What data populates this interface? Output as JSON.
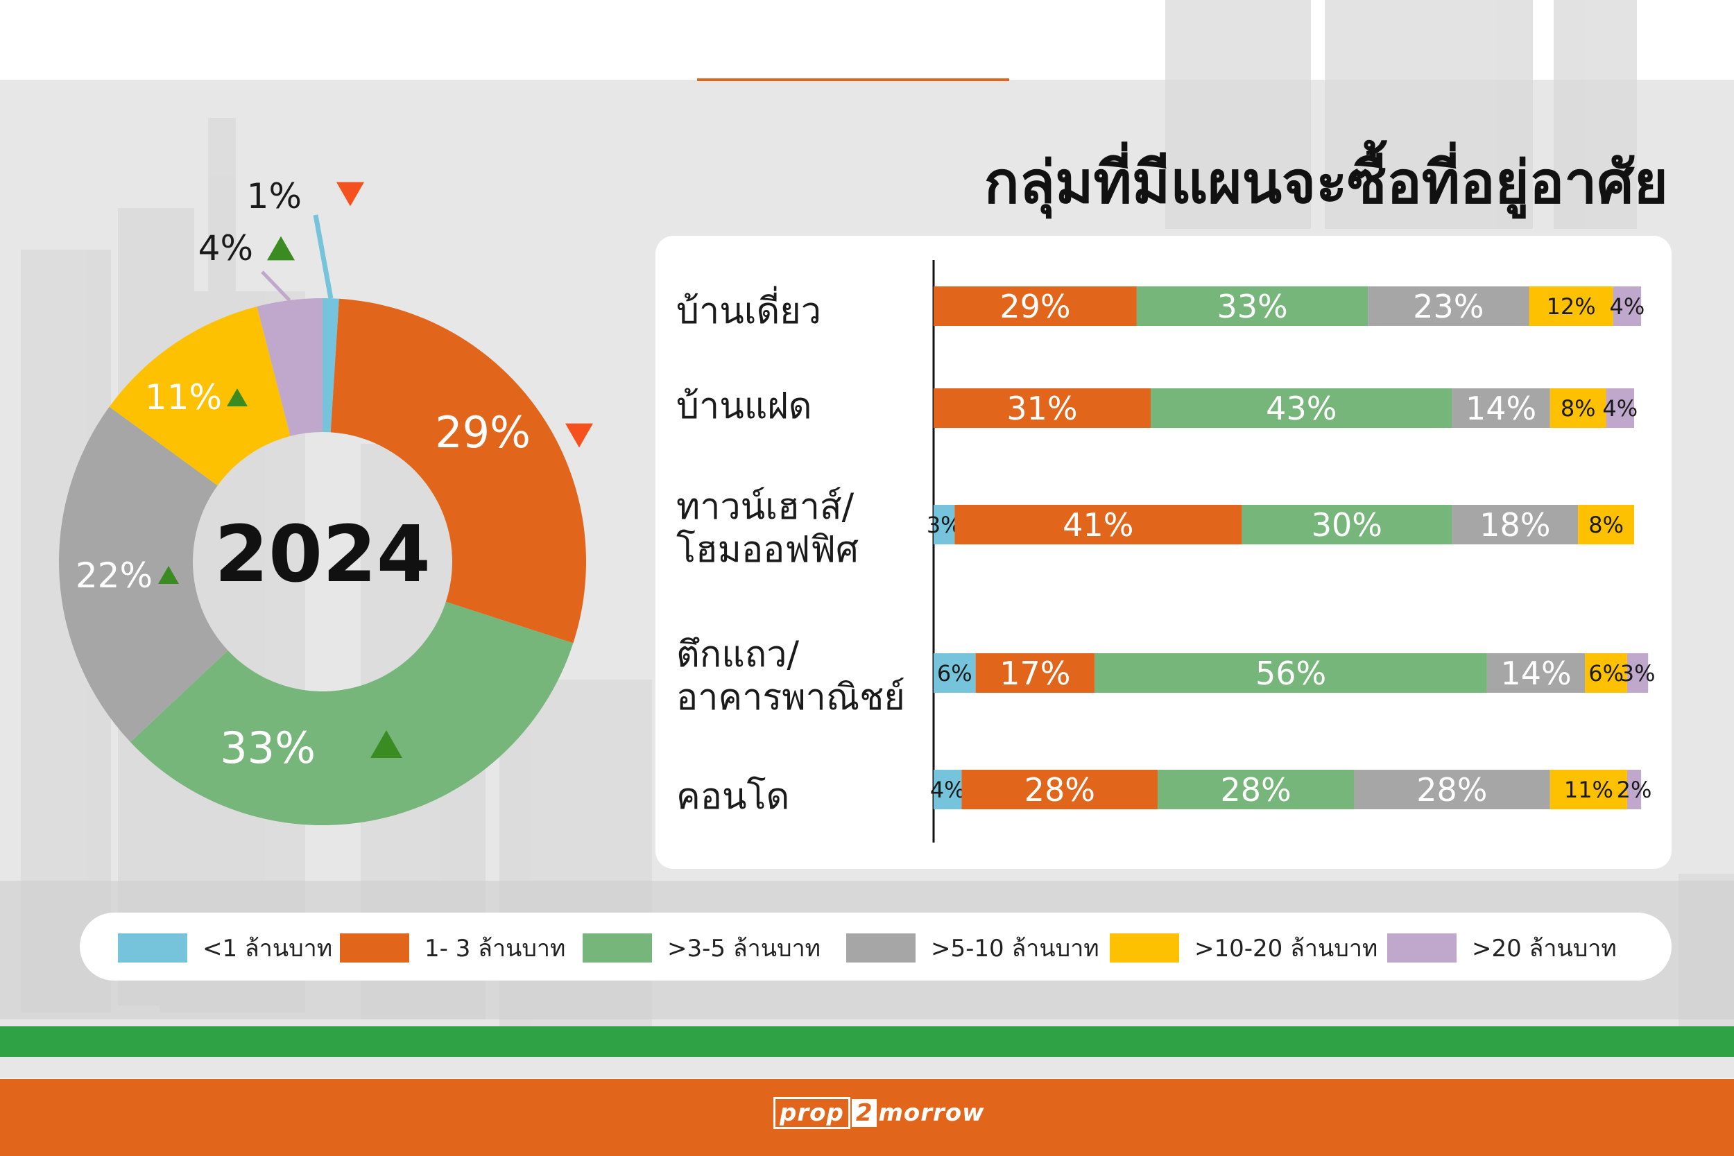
{
  "title": "กลุ่มที่มีแผนจะซื้อที่อยู่อาศัย",
  "donut": {
    "center_label": "2024",
    "segments": [
      {
        "label": "1%",
        "value": 1,
        "color": "#75c4db",
        "trend": "down"
      },
      {
        "label": "29%",
        "value": 29,
        "color": "#e1661b",
        "trend": "down"
      },
      {
        "label": "33%",
        "value": 33,
        "color": "#77b67a",
        "trend": "up"
      },
      {
        "label": "22%",
        "value": 22,
        "color": "#a6a6a6",
        "trend": "up"
      },
      {
        "label": "11%",
        "value": 11,
        "color": "#fdc101",
        "trend": "up"
      },
      {
        "label": "4%",
        "value": 4,
        "color": "#c0a8cd",
        "trend": "up"
      }
    ]
  },
  "colors": {
    "lt1": "#75c4db",
    "1to3": "#e1661b",
    "3to5": "#77b67a",
    "5to10": "#a6a6a6",
    "10to20": "#fdc101",
    "gt20": "#c0a8cd",
    "up": "#3a8c22",
    "down": "#f4511e"
  },
  "legend": [
    {
      "key": "lt1",
      "label": "<1 ล้านบาท"
    },
    {
      "key": "1to3",
      "label": "1- 3 ล้านบาท"
    },
    {
      "key": "3to5",
      "label": ">3-5  ล้านบาท"
    },
    {
      "key": "5to10",
      "label": ">5-10  ล้านบาท"
    },
    {
      "key": "10to20",
      "label": ">10-20  ล้านบาท"
    },
    {
      "key": "gt20",
      "label": ">20  ล้านบาท"
    }
  ],
  "categories": [
    {
      "line1": "บ้านเดี่ยว",
      "line2": ""
    },
    {
      "line1": "บ้านแฝด",
      "line2": ""
    },
    {
      "line1": "ทาวน์เฮาส์/",
      "line2": "โฮมออฟฟิศ"
    },
    {
      "line1": "ตึกแถว/",
      "line2": "อาคารพาณิชย์"
    },
    {
      "line1": "คอนโด",
      "line2": ""
    }
  ],
  "chart_data": [
    {
      "type": "pie",
      "title": "2024",
      "categories": [
        "<1 ล้านบาท",
        "1- 3 ล้านบาท",
        ">3-5  ล้านบาท",
        ">5-10  ล้านบาท",
        ">10-20  ล้านบาท",
        ">20  ล้านบาท"
      ],
      "values": [
        1,
        29,
        33,
        22,
        11,
        4
      ]
    },
    {
      "type": "bar",
      "orientation": "horizontal",
      "stacked": true,
      "categories": [
        "บ้านเดี่ยว",
        "บ้านแฝด",
        "ทาวน์เฮาส์/โฮมออฟฟิศ",
        "ตึกแถว/อาคารพาณิชย์",
        "คอนโด"
      ],
      "series": [
        {
          "name": "<1 ล้านบาท",
          "key": "lt1",
          "values": [
            0,
            0,
            3,
            6,
            4
          ]
        },
        {
          "name": "1- 3 ล้านบาท",
          "key": "1to3",
          "values": [
            29,
            31,
            41,
            17,
            28
          ]
        },
        {
          "name": ">3-5  ล้านบาท",
          "key": "3to5",
          "values": [
            33,
            43,
            30,
            56,
            28
          ]
        },
        {
          "name": ">5-10  ล้านบาท",
          "key": "5to10",
          "values": [
            23,
            14,
            18,
            14,
            28
          ]
        },
        {
          "name": ">10-20  ล้านบาท",
          "key": "10to20",
          "values": [
            12,
            8,
            8,
            6,
            11
          ]
        },
        {
          "name": ">20  ล้านบาท",
          "key": "gt20",
          "values": [
            4,
            4,
            0,
            3,
            2
          ]
        }
      ]
    }
  ]
}
